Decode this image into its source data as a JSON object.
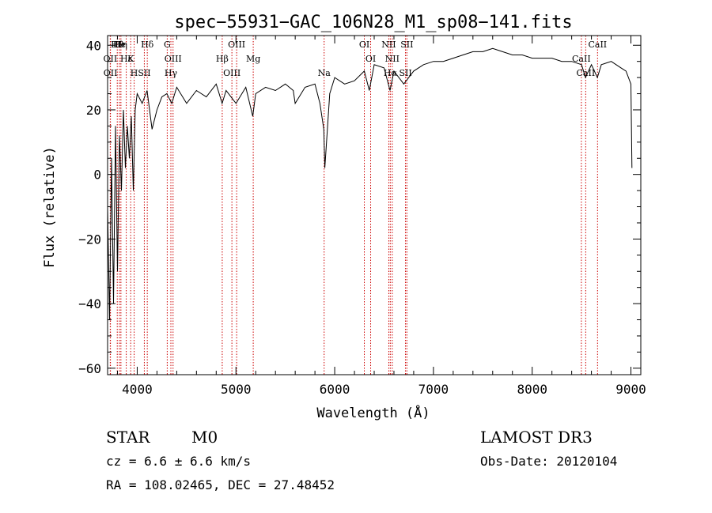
{
  "chart_data": {
    "type": "line",
    "title": "spec−55931−GAC_106N28_M1_sp08−141.fits",
    "xlabel": "Wavelength (Å)",
    "ylabel": "Flux (relative)",
    "xlim": [
      3700,
      9100
    ],
    "ylim": [
      -62,
      43
    ],
    "xticks": [
      4000,
      5000,
      6000,
      7000,
      8000,
      9000
    ],
    "xtick_labels": [
      "4000",
      "5000",
      "6000",
      "7000",
      "8000",
      "9000"
    ],
    "yticks": [
      -60,
      -40,
      -20,
      0,
      20,
      40
    ],
    "ytick_labels": [
      "−60",
      "−40",
      "−20",
      "0",
      "20",
      "40"
    ],
    "series": [
      {
        "name": "spectrum",
        "x": [
          3700,
          3720,
          3740,
          3760,
          3780,
          3800,
          3820,
          3840,
          3860,
          3880,
          3900,
          3920,
          3940,
          3960,
          3980,
          4000,
          4050,
          4100,
          4150,
          4200,
          4250,
          4300,
          4350,
          4400,
          4500,
          4600,
          4700,
          4800,
          4860,
          4900,
          5000,
          5100,
          5170,
          5200,
          5300,
          5400,
          5500,
          5580,
          5600,
          5700,
          5800,
          5850,
          5890,
          5900,
          5950,
          6000,
          6100,
          6200,
          6300,
          6350,
          6400,
          6500,
          6560,
          6600,
          6700,
          6800,
          6900,
          7000,
          7100,
          7200,
          7300,
          7400,
          7500,
          7600,
          7700,
          7800,
          7900,
          8000,
          8100,
          8200,
          8300,
          8400,
          8500,
          8540,
          8600,
          8660,
          8700,
          8800,
          8900,
          8950,
          9000,
          9010
        ],
        "y": [
          -10,
          -45,
          5,
          -40,
          15,
          -30,
          12,
          -5,
          20,
          2,
          15,
          5,
          18,
          -5,
          20,
          25,
          22,
          26,
          14,
          20,
          24,
          25,
          22,
          27,
          22,
          26,
          24,
          28,
          22,
          26,
          22,
          27,
          18,
          25,
          27,
          26,
          28,
          26,
          22,
          27,
          28,
          22,
          14,
          2,
          25,
          30,
          28,
          29,
          32,
          26,
          34,
          33,
          26,
          32,
          28,
          32,
          34,
          35,
          35,
          36,
          37,
          38,
          38,
          39,
          38,
          37,
          37,
          36,
          36,
          36,
          35,
          35,
          34,
          30,
          34,
          30,
          34,
          35,
          33,
          32,
          28,
          2
        ]
      }
    ],
    "lines": [
      {
        "label": "Hθ",
        "wave": 3798
      },
      {
        "label": "OII",
        "wave": 3727
      },
      {
        "label": "OII",
        "wave": 3729
      },
      {
        "label": "He",
        "wave": 3820
      },
      {
        "label": "K",
        "wave": 3934
      },
      {
        "label": "H",
        "wave": 3969
      },
      {
        "label": "Hη",
        "wave": 3835
      },
      {
        "label": "Hε",
        "wave": 3889
      },
      {
        "label": "SII",
        "wave": 4072
      },
      {
        "label": "Hδ",
        "wave": 4102
      },
      {
        "label": "OIII",
        "wave": 4363
      },
      {
        "label": "Hγ",
        "wave": 4341
      },
      {
        "label": "G",
        "wave": 4304
      },
      {
        "label": "Hβ",
        "wave": 4861
      },
      {
        "label": "OIII",
        "wave": 4959
      },
      {
        "label": "OIII",
        "wave": 5007
      },
      {
        "label": "Mg",
        "wave": 5175
      },
      {
        "label": "Na",
        "wave": 5893
      },
      {
        "label": "OI",
        "wave": 6300
      },
      {
        "label": "OI",
        "wave": 6364
      },
      {
        "label": "Hα",
        "wave": 6563
      },
      {
        "label": "NII",
        "wave": 6548
      },
      {
        "label": "NII",
        "wave": 6583
      },
      {
        "label": "SII",
        "wave": 6717
      },
      {
        "label": "SII",
        "wave": 6731
      },
      {
        "label": "CaII",
        "wave": 8498
      },
      {
        "label": "CaII",
        "wave": 8542
      },
      {
        "label": "CaII",
        "wave": 8662
      }
    ]
  },
  "info": {
    "class": "STAR",
    "subclass": "M0",
    "survey": "LAMOST DR3",
    "cz": "cz = 6.6 ± 6.6 km/s",
    "obs_date": "Obs-Date: 20120104",
    "coords": "RA = 108.02465, DEC =  27.48452"
  }
}
